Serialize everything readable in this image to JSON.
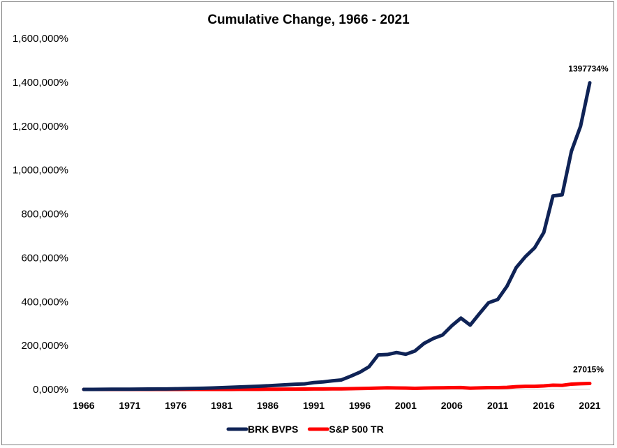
{
  "chart_data": {
    "type": "line",
    "title": "Cumulative Change, 1966 - 2021",
    "xlabel": "",
    "ylabel": "",
    "ylim": [
      0,
      1600000
    ],
    "y_ticks": [
      "0,000%",
      "200,000%",
      "400,000%",
      "600,000%",
      "800,000%",
      "1,000,000%",
      "1,200,000%",
      "1,400,000%",
      "1,600,000%"
    ],
    "x_ticks": [
      "1966",
      "1971",
      "1976",
      "1981",
      "1986",
      "1991",
      "1996",
      "2001",
      "2006",
      "2011",
      "2016",
      "2021"
    ],
    "grid": false,
    "legend_position": "bottom",
    "x": [
      1966,
      1967,
      1968,
      1969,
      1970,
      1971,
      1972,
      1973,
      1974,
      1975,
      1976,
      1977,
      1978,
      1979,
      1980,
      1981,
      1982,
      1983,
      1984,
      1985,
      1986,
      1987,
      1988,
      1989,
      1990,
      1991,
      1992,
      1993,
      1994,
      1995,
      1996,
      1997,
      1998,
      1999,
      2000,
      2001,
      2002,
      2003,
      2004,
      2005,
      2006,
      2007,
      2008,
      2009,
      2010,
      2011,
      2012,
      2013,
      2014,
      2015,
      2016,
      2017,
      2018,
      2019,
      2020,
      2021
    ],
    "series": [
      {
        "name": "BRK BVPS",
        "color": "#0f2356",
        "values": [
          0,
          200,
          400,
          600,
          800,
          1000,
          1300,
          1600,
          1800,
          2100,
          2800,
          3500,
          4300,
          5200,
          6400,
          7900,
          9500,
          11000,
          12800,
          14500,
          16500,
          18500,
          21000,
          23500,
          25000,
          31000,
          34000,
          39000,
          43000,
          60000,
          78000,
          103000,
          157000,
          159000,
          168000,
          160000,
          175000,
          210000,
          232000,
          248000,
          290000,
          325000,
          293000,
          345000,
          395000,
          410000,
          470000,
          555000,
          605000,
          645000,
          715000,
          882000,
          887000,
          1085000,
          1200000,
          1397734
        ],
        "end_label": "1397734%"
      },
      {
        "name": "S&P 500 TR",
        "color": "#ff0000",
        "values": [
          0,
          0,
          0,
          0,
          0,
          0,
          0,
          0,
          0,
          0,
          0,
          0,
          0,
          0,
          0,
          100,
          200,
          300,
          400,
          500,
          700,
          900,
          1100,
          1300,
          1400,
          1800,
          2000,
          2200,
          2300,
          3100,
          3800,
          4600,
          6000,
          7200,
          6500,
          5900,
          4600,
          5900,
          6600,
          7000,
          8100,
          8500,
          5400,
          6800,
          7800,
          7900,
          9200,
          12200,
          13900,
          14100,
          15800,
          19200,
          18300,
          24000,
          26000,
          27015
        ],
        "end_label": "27015%"
      }
    ]
  }
}
